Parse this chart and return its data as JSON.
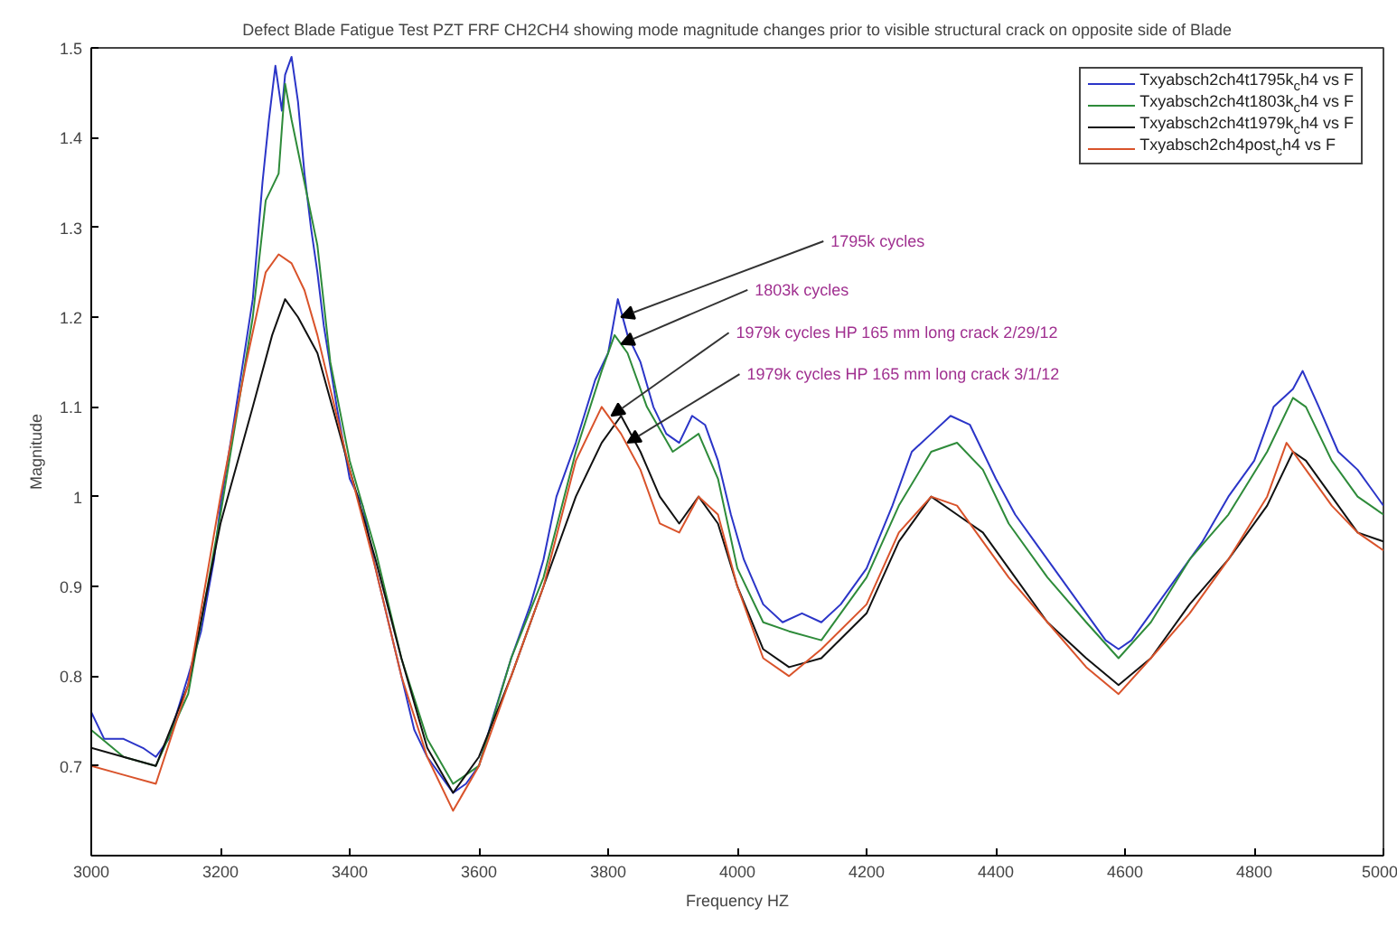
{
  "chart_data": {
    "type": "line",
    "title": "Defect Blade Fatigue Test PZT FRF CH2CH4 showing mode magnitude changes prior to visible structural crack on opposite side of Blade",
    "xlabel": "Frequency HZ",
    "ylabel": "Magnitude",
    "xlim": [
      3000,
      5000
    ],
    "xticks": [
      3000,
      3200,
      3400,
      3600,
      3800,
      4000,
      4200,
      4400,
      4600,
      4800,
      5000
    ],
    "ylim": [
      0.6,
      1.5
    ],
    "yticks": [
      0.7,
      0.8,
      0.9,
      1,
      1.1,
      1.2,
      1.3,
      1.4,
      1.5
    ],
    "grid": false,
    "legend": "top right",
    "marker": "none",
    "line_style": "solid",
    "annotations": [
      {
        "text": "1795k cycles",
        "x": 3820,
        "y": 1.2
      },
      {
        "text": "1803k cycles",
        "x": 3820,
        "y": 1.17
      },
      {
        "text": "1979k cycles HP 165 mm long crack 2/29/12",
        "x": 3805,
        "y": 1.09
      },
      {
        "text": "1979k cycles HP 165 mm long crack 3/1/12",
        "x": 3830,
        "y": 1.06
      }
    ],
    "series": [
      {
        "name": "Txyabsch2ch4t1795k$_{c}$h4 vs F",
        "color": "#2b35c8",
        "x": [
          3000,
          3020,
          3050,
          3080,
          3100,
          3120,
          3150,
          3170,
          3190,
          3200,
          3220,
          3235,
          3250,
          3265,
          3275,
          3285,
          3295,
          3300,
          3310,
          3320,
          3330,
          3340,
          3350,
          3360,
          3380,
          3400,
          3420,
          3440,
          3460,
          3480,
          3500,
          3520,
          3540,
          3560,
          3580,
          3600,
          3620,
          3650,
          3680,
          3700,
          3720,
          3750,
          3780,
          3800,
          3815,
          3830,
          3850,
          3870,
          3890,
          3910,
          3930,
          3950,
          3970,
          3990,
          4010,
          4040,
          4070,
          4100,
          4130,
          4160,
          4200,
          4240,
          4270,
          4300,
          4330,
          4360,
          4380,
          4400,
          4430,
          4460,
          4500,
          4540,
          4570,
          4590,
          4610,
          4640,
          4680,
          4720,
          4760,
          4800,
          4830,
          4860,
          4875,
          4900,
          4930,
          4960,
          4980,
          5000
        ],
        "values": [
          0.76,
          0.73,
          0.73,
          0.72,
          0.71,
          0.73,
          0.8,
          0.85,
          0.93,
          0.99,
          1.08,
          1.15,
          1.22,
          1.35,
          1.42,
          1.48,
          1.43,
          1.47,
          1.49,
          1.44,
          1.36,
          1.3,
          1.25,
          1.19,
          1.1,
          1.02,
          0.99,
          0.92,
          0.86,
          0.8,
          0.74,
          0.71,
          0.69,
          0.67,
          0.68,
          0.7,
          0.75,
          0.82,
          0.88,
          0.93,
          1.0,
          1.06,
          1.13,
          1.16,
          1.22,
          1.18,
          1.15,
          1.1,
          1.07,
          1.06,
          1.09,
          1.08,
          1.04,
          0.98,
          0.93,
          0.88,
          0.86,
          0.87,
          0.86,
          0.88,
          0.92,
          0.99,
          1.05,
          1.07,
          1.09,
          1.08,
          1.05,
          1.02,
          0.98,
          0.95,
          0.91,
          0.87,
          0.84,
          0.83,
          0.84,
          0.87,
          0.91,
          0.95,
          1.0,
          1.04,
          1.1,
          1.12,
          1.14,
          1.1,
          1.05,
          1.03,
          1.01,
          0.99
        ]
      },
      {
        "name": "Txyabsch2ch4t1803k$_{c}$h4 vs F",
        "color": "#2e8b3a",
        "x": [
          3000,
          3050,
          3100,
          3150,
          3200,
          3250,
          3270,
          3290,
          3300,
          3310,
          3330,
          3350,
          3370,
          3400,
          3440,
          3480,
          3520,
          3560,
          3600,
          3650,
          3700,
          3750,
          3790,
          3810,
          3830,
          3860,
          3900,
          3940,
          3970,
          4000,
          4040,
          4080,
          4130,
          4200,
          4250,
          4300,
          4340,
          4380,
          4420,
          4480,
          4540,
          4590,
          4640,
          4700,
          4760,
          4820,
          4860,
          4880,
          4920,
          4960,
          5000
        ],
        "values": [
          0.74,
          0.71,
          0.7,
          0.78,
          0.98,
          1.2,
          1.33,
          1.36,
          1.46,
          1.42,
          1.35,
          1.28,
          1.15,
          1.04,
          0.94,
          0.82,
          0.73,
          0.68,
          0.7,
          0.82,
          0.91,
          1.05,
          1.14,
          1.18,
          1.16,
          1.1,
          1.05,
          1.07,
          1.02,
          0.92,
          0.86,
          0.85,
          0.84,
          0.91,
          0.99,
          1.05,
          1.06,
          1.03,
          0.97,
          0.91,
          0.86,
          0.82,
          0.86,
          0.93,
          0.98,
          1.05,
          1.11,
          1.1,
          1.04,
          1.0,
          0.98
        ]
      },
      {
        "name": "Txyabsch2ch4t1979k$_{c}$h4 vs F",
        "color": "#111111",
        "x": [
          3000,
          3050,
          3100,
          3150,
          3200,
          3250,
          3280,
          3300,
          3320,
          3350,
          3400,
          3440,
          3480,
          3520,
          3560,
          3600,
          3650,
          3700,
          3750,
          3790,
          3820,
          3850,
          3880,
          3910,
          3940,
          3970,
          4000,
          4040,
          4080,
          4130,
          4200,
          4250,
          4300,
          4340,
          4380,
          4420,
          4480,
          4540,
          4590,
          4640,
          4700,
          4760,
          4820,
          4860,
          4880,
          4920,
          4960,
          5000
        ],
        "values": [
          0.72,
          0.71,
          0.7,
          0.79,
          0.97,
          1.1,
          1.18,
          1.22,
          1.2,
          1.16,
          1.03,
          0.93,
          0.82,
          0.72,
          0.67,
          0.71,
          0.8,
          0.9,
          1.0,
          1.06,
          1.09,
          1.05,
          1.0,
          0.97,
          1.0,
          0.97,
          0.9,
          0.83,
          0.81,
          0.82,
          0.87,
          0.95,
          1.0,
          0.98,
          0.96,
          0.92,
          0.86,
          0.82,
          0.79,
          0.82,
          0.88,
          0.93,
          0.99,
          1.05,
          1.04,
          1.0,
          0.96,
          0.95
        ]
      },
      {
        "name": "Txyabsch2ch4post$_{c}$h4 vs F",
        "color": "#d9532b",
        "x": [
          3000,
          3050,
          3100,
          3150,
          3200,
          3240,
          3270,
          3290,
          3310,
          3330,
          3350,
          3400,
          3440,
          3480,
          3520,
          3560,
          3600,
          3650,
          3700,
          3750,
          3790,
          3820,
          3850,
          3880,
          3910,
          3940,
          3970,
          4000,
          4040,
          4080,
          4130,
          4200,
          4250,
          4300,
          4340,
          4380,
          4420,
          4480,
          4540,
          4590,
          4640,
          4700,
          4760,
          4820,
          4850,
          4880,
          4920,
          4960,
          5000
        ],
        "values": [
          0.7,
          0.69,
          0.68,
          0.79,
          1.0,
          1.15,
          1.25,
          1.27,
          1.26,
          1.23,
          1.18,
          1.03,
          0.92,
          0.8,
          0.71,
          0.65,
          0.7,
          0.8,
          0.9,
          1.04,
          1.1,
          1.07,
          1.03,
          0.97,
          0.96,
          1.0,
          0.98,
          0.9,
          0.82,
          0.8,
          0.83,
          0.88,
          0.96,
          1.0,
          0.99,
          0.95,
          0.91,
          0.86,
          0.81,
          0.78,
          0.82,
          0.87,
          0.93,
          1.0,
          1.06,
          1.03,
          0.99,
          0.96,
          0.94
        ]
      }
    ]
  }
}
